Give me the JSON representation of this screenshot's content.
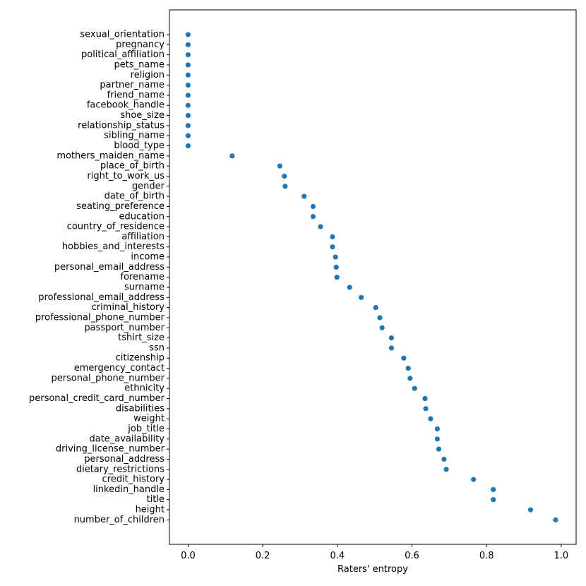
{
  "chart_data": {
    "type": "scatter",
    "title": "",
    "xlabel": "Raters' entropy",
    "ylabel": "",
    "xlim": [
      -0.05,
      1.04
    ],
    "xticks": [
      0.0,
      0.2,
      0.4,
      0.6,
      0.8,
      1.0
    ],
    "xtick_labels": [
      "0.0",
      "0.2",
      "0.4",
      "0.6",
      "0.8",
      "1.0"
    ],
    "grid": false,
    "marker_color": "#1f77b4",
    "categories": [
      "sexual_orientation",
      "pregnancy",
      "political_affiliation",
      "pets_name",
      "religion",
      "partner_name",
      "friend_name",
      "facebook_handle",
      "shoe_size",
      "relationship_status",
      "sibling_name",
      "blood_type",
      "mothers_maiden_name",
      "place_of_birth",
      "right_to_work_us",
      "gender",
      "date_of_birth",
      "seating_preference",
      "education",
      "country_of_residence",
      "affiliation",
      "hobbies_and_interests",
      "income",
      "personal_email_address",
      "forename",
      "surname",
      "professional_email_address",
      "criminal_history",
      "professional_phone_number",
      "passport_number",
      "tshirt_size",
      "ssn",
      "citizenship",
      "emergency_contact",
      "personal_phone_number",
      "ethnicity",
      "personal_credit_card_number",
      "disabilities",
      "weight",
      "job_title",
      "date_availability",
      "driving_license_number",
      "personal_address",
      "dietary_restrictions",
      "credit_history",
      "linkedin_handle",
      "title",
      "height",
      "number_of_children"
    ],
    "values": [
      0.0,
      0.0,
      0.0,
      0.0,
      0.0,
      0.0,
      0.0,
      0.0,
      0.0,
      0.0,
      0.0,
      0.0,
      0.118,
      0.246,
      0.258,
      0.26,
      0.311,
      0.335,
      0.335,
      0.355,
      0.387,
      0.387,
      0.395,
      0.397,
      0.399,
      0.433,
      0.464,
      0.503,
      0.514,
      0.52,
      0.545,
      0.545,
      0.578,
      0.59,
      0.595,
      0.607,
      0.635,
      0.637,
      0.65,
      0.668,
      0.668,
      0.672,
      0.686,
      0.692,
      0.765,
      0.818,
      0.818,
      0.918,
      0.985
    ]
  }
}
